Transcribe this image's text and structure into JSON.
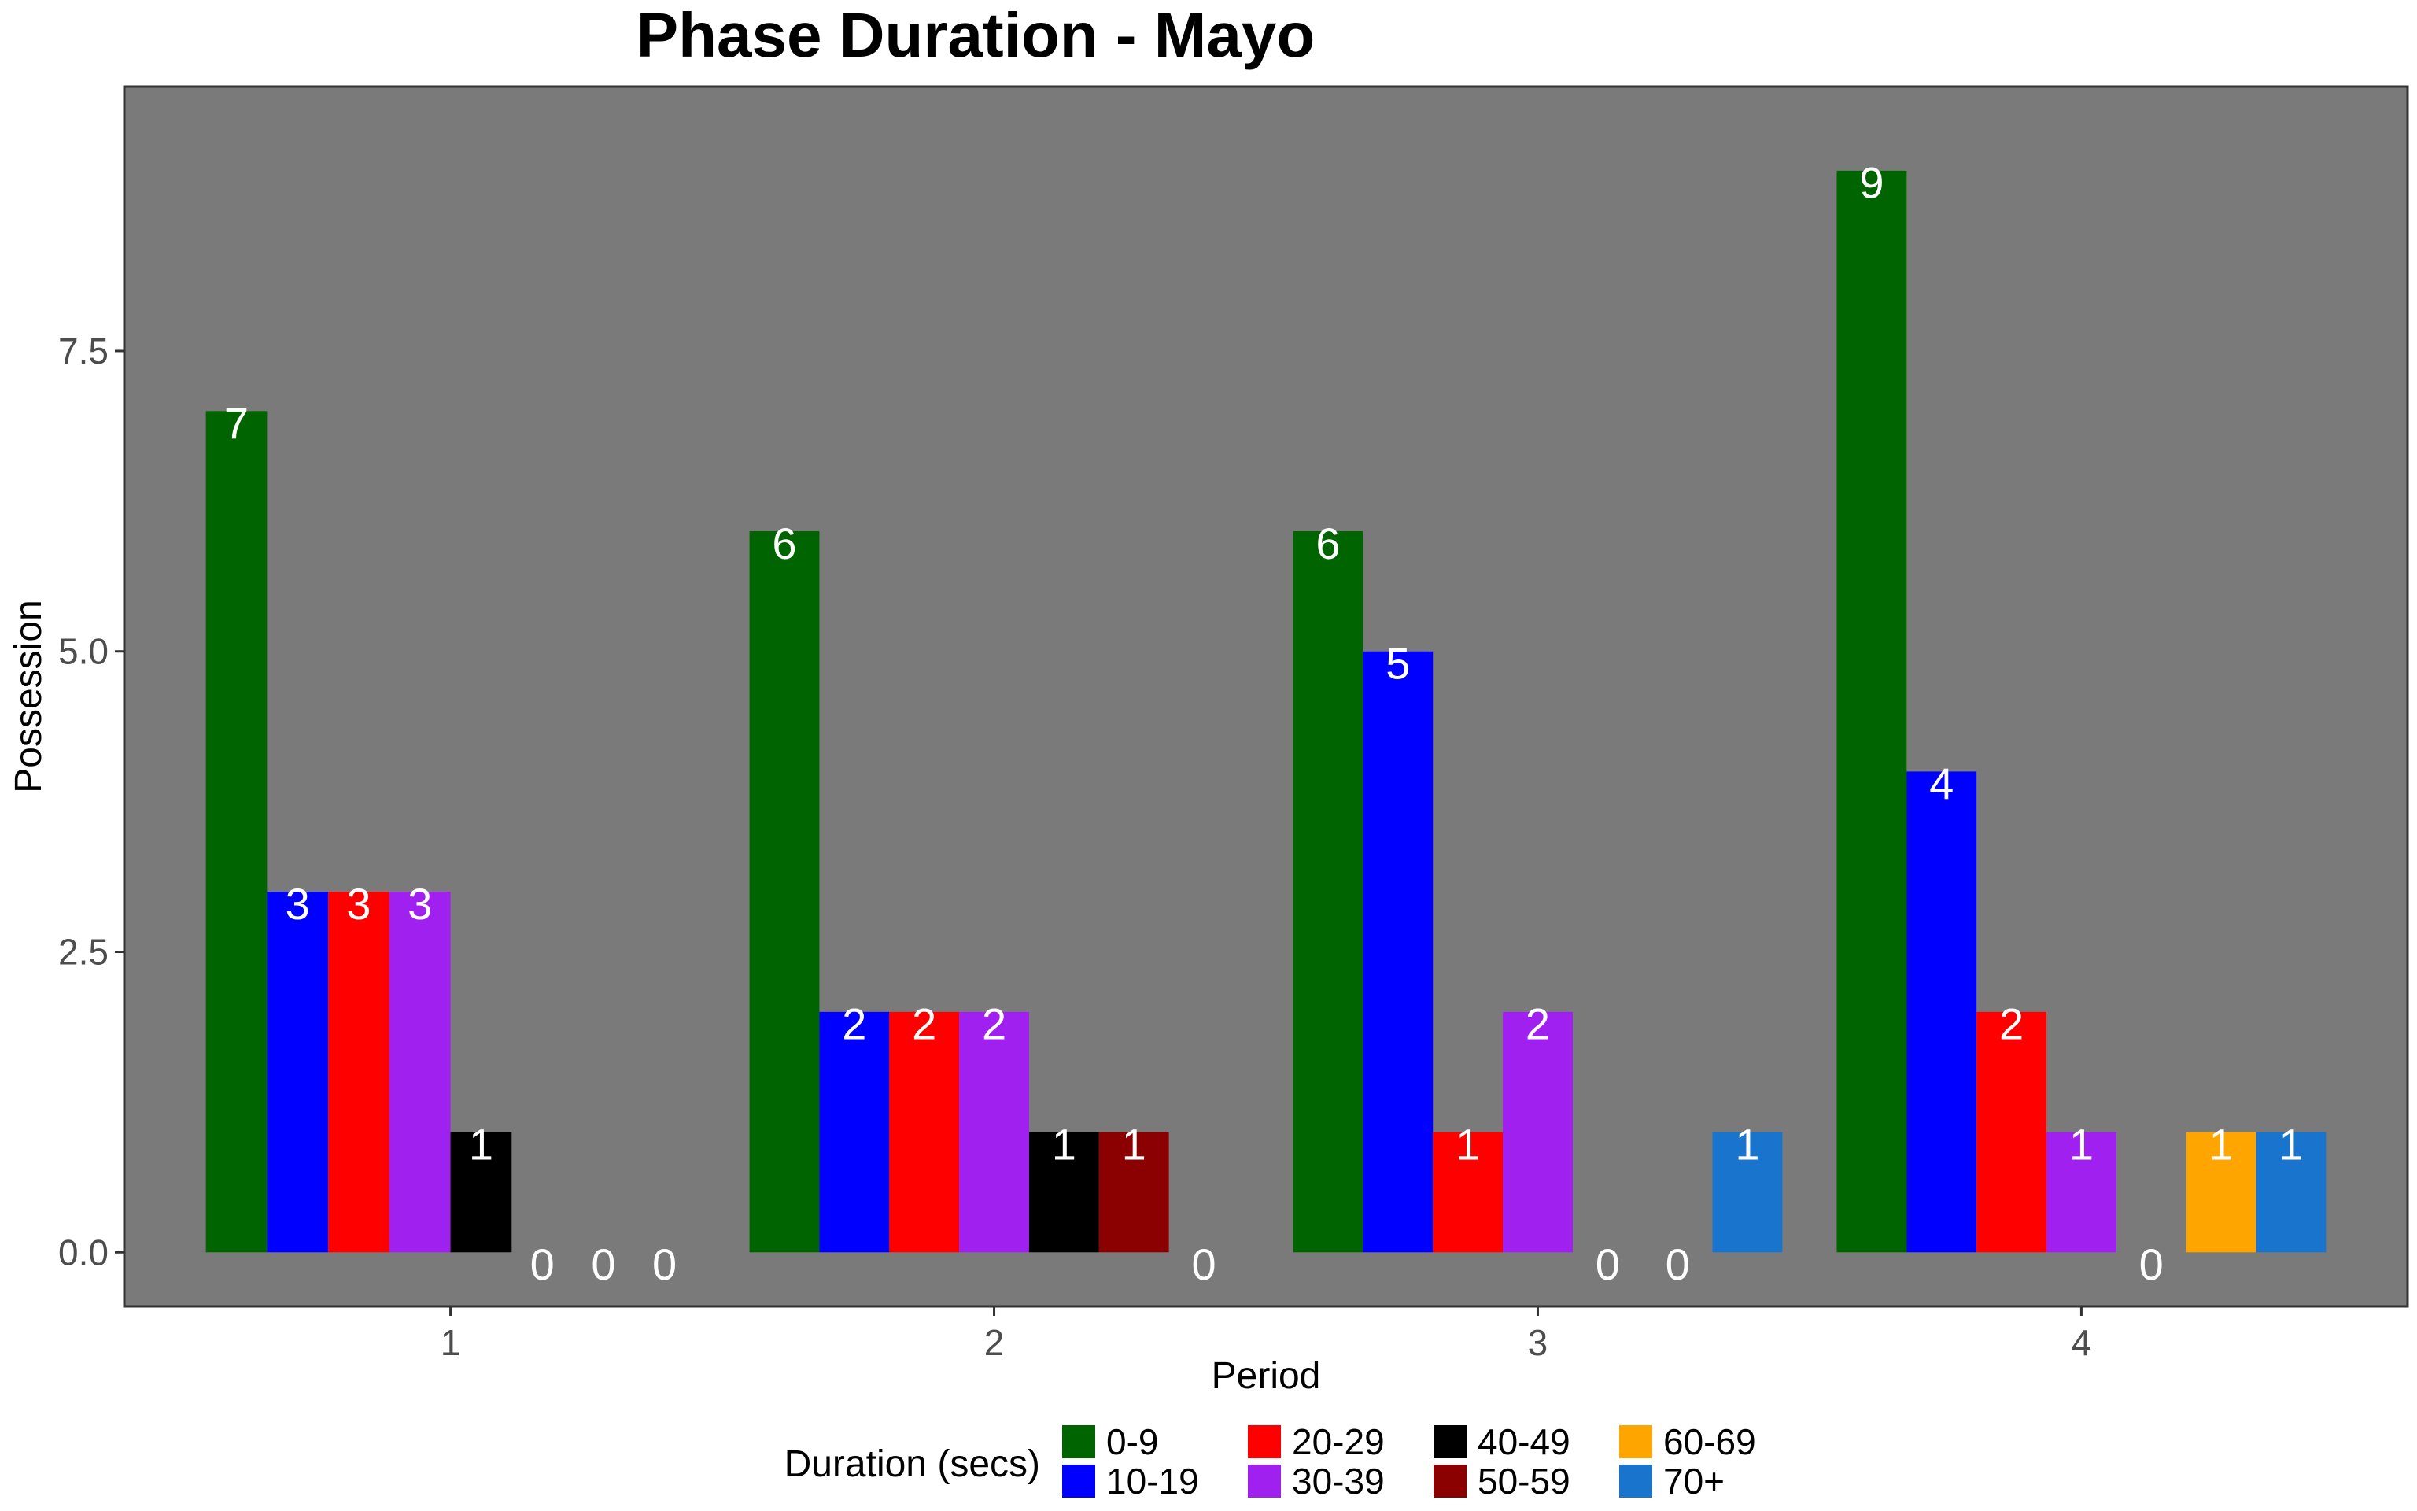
{
  "chart_data": {
    "type": "bar",
    "title": "Phase Duration - Mayo",
    "xlabel": "Period",
    "ylabel": "Possession",
    "categories": [
      "1",
      "2",
      "3",
      "4"
    ],
    "ylim": [
      -0.45,
      9.7
    ],
    "yticks": [
      0.0,
      2.5,
      5.0,
      7.5
    ],
    "ytick_labels": [
      "0.0",
      "2.5",
      "5.0",
      "7.5"
    ],
    "grid": false,
    "panel_background": "#7a7a7a",
    "legend": {
      "title": "Duration (secs)",
      "position": "bottom"
    },
    "periods": [
      {
        "period": "1",
        "bars": [
          {
            "series": "0-9",
            "value": 7
          },
          {
            "series": "10-19",
            "value": 3
          },
          {
            "series": "20-29",
            "value": 3
          },
          {
            "series": "30-39",
            "value": 3
          },
          {
            "series": "40-49",
            "value": 1
          },
          {
            "series": "",
            "value": 0
          },
          {
            "series": "",
            "value": 0
          },
          {
            "series": "",
            "value": 0
          }
        ]
      },
      {
        "period": "2",
        "bars": [
          {
            "series": "0-9",
            "value": 6
          },
          {
            "series": "10-19",
            "value": 2
          },
          {
            "series": "20-29",
            "value": 2
          },
          {
            "series": "30-39",
            "value": 2
          },
          {
            "series": "40-49",
            "value": 1
          },
          {
            "series": "50-59",
            "value": 1
          },
          {
            "series": "",
            "value": 0
          }
        ]
      },
      {
        "period": "3",
        "bars": [
          {
            "series": "0-9",
            "value": 6
          },
          {
            "series": "10-19",
            "value": 5
          },
          {
            "series": "20-29",
            "value": 1
          },
          {
            "series": "30-39",
            "value": 2
          },
          {
            "series": "",
            "value": 0
          },
          {
            "series": "",
            "value": 0
          },
          {
            "series": "70+",
            "value": 1
          }
        ]
      },
      {
        "period": "4",
        "bars": [
          {
            "series": "0-9",
            "value": 9
          },
          {
            "series": "10-19",
            "value": 4
          },
          {
            "series": "20-29",
            "value": 2
          },
          {
            "series": "30-39",
            "value": 1
          },
          {
            "series": "",
            "value": 0
          },
          {
            "series": "60-69",
            "value": 1
          },
          {
            "series": "70+",
            "value": 1
          }
        ]
      }
    ],
    "series": [
      {
        "name": "0-9",
        "color": "#006400"
      },
      {
        "name": "10-19",
        "color": "#0000ff"
      },
      {
        "name": "20-29",
        "color": "#ff0000"
      },
      {
        "name": "30-39",
        "color": "#a020f0"
      },
      {
        "name": "40-49",
        "color": "#000000"
      },
      {
        "name": "50-59",
        "color": "#8b0000"
      },
      {
        "name": "60-69",
        "color": "#ffa500"
      },
      {
        "name": "70+",
        "color": "#1874cd"
      }
    ]
  }
}
